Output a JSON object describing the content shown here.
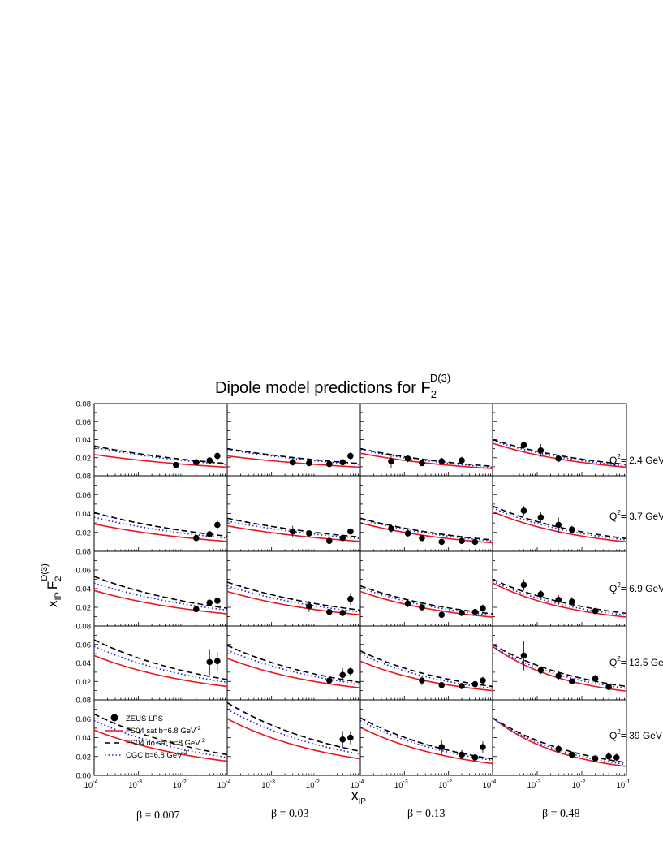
{
  "title": {
    "main": "Dipole model predictions for F",
    "sub": "2",
    "sup": "D(3)"
  },
  "ylabel": {
    "x": "x",
    "sub1": "IP",
    "F": "F",
    "sub2": "2",
    "sup": "D(3)"
  },
  "xlabel": {
    "x": "x",
    "sub": "IP"
  },
  "ytick_labels": [
    "0.00",
    "0.02",
    "0.04",
    "0.06",
    "0.08"
  ],
  "xtick_labels": [
    {
      "base": "10",
      "exp": "-4"
    },
    {
      "base": "10",
      "exp": "-3"
    },
    {
      "base": "10",
      "exp": "-2"
    },
    {
      "base": "10",
      "exp": "-1"
    }
  ],
  "beta_labels": [
    "β = 0.007",
    "β = 0.03",
    "β = 0.13",
    "β = 0.48"
  ],
  "q2_labels": [
    {
      "pre": "Q",
      "sup": "2",
      "post": "= 2.4 GeV"
    },
    {
      "pre": "Q",
      "sup": "2",
      "post": "= 3.7 GeV"
    },
    {
      "pre": "Q",
      "sup": "2",
      "post": "= 6.9 GeV"
    },
    {
      "pre": "Q",
      "sup": "2",
      "post": "= 13.5 Ge"
    },
    {
      "pre": "Q",
      "sup": "2",
      "post": "= 39 GeV"
    }
  ],
  "legend": [
    {
      "label": "ZEUS LPS",
      "sup": "",
      "style": "points"
    },
    {
      "label": "FS04 sat b=6.8 GeV",
      "sup": "-2",
      "style": "solid"
    },
    {
      "label": "FS04 no sat b=8 GeV",
      "sup": "-2",
      "style": "dash"
    },
    {
      "label": "CGC b=6.8 GeV",
      "sup": "-2",
      "style": "dot"
    }
  ],
  "colors": {
    "fs04_sat": "#e8171f",
    "fs04_nosat": "#000000",
    "cgc": "#1f1fcc",
    "data": "#000000"
  },
  "chart_data": {
    "type": "scatter",
    "layout": "5 rows (Q2) x 4 columns (beta) grid of panels",
    "xscale": "log",
    "xlim": [
      0.0001,
      0.1
    ],
    "ylim": [
      0,
      0.08
    ],
    "betas": [
      0.007,
      0.03,
      0.13,
      0.48
    ],
    "q2": [
      2.4,
      3.7,
      6.9,
      13.5,
      39
    ],
    "series_names": [
      "ZEUS LPS",
      "FS04 sat b=6.8 GeV-2",
      "FS04 no sat b=8 GeV-2",
      "CGC b=6.8 GeV-2"
    ],
    "panels": [
      [
        {
          "curves": {
            "sat": [
              0.0235,
              0.0095
            ],
            "nosat": [
              0.033,
              0.0135
            ],
            "cgc": [
              0.0315,
              0.0125
            ]
          },
          "points": [
            [
              0.007,
              0.012,
              0.003
            ],
            [
              0.02,
              0.015,
              0.002
            ],
            [
              0.04,
              0.017,
              0.003
            ],
            [
              0.06,
              0.022,
              0.004
            ]
          ]
        },
        {
          "curves": {
            "sat": [
              0.022,
              0.0095
            ],
            "nosat": [
              0.03,
              0.0135
            ],
            "cgc": [
              0.029,
              0.0125
            ]
          },
          "points": [
            [
              0.003,
              0.015,
              0.004
            ],
            [
              0.007,
              0.014,
              0.003
            ],
            [
              0.02,
              0.013,
              0.002
            ],
            [
              0.04,
              0.015,
              0.003
            ],
            [
              0.06,
              0.022,
              0.004
            ]
          ]
        },
        {
          "curves": {
            "sat": [
              0.025,
              0.008
            ],
            "nosat": [
              0.03,
              0.0105
            ],
            "cgc": [
              0.029,
              0.0095
            ]
          },
          "points": [
            [
              0.0005,
              0.016,
              0.008
            ],
            [
              0.0012,
              0.019,
              0.004
            ],
            [
              0.0025,
              0.014,
              0.003
            ],
            [
              0.007,
              0.016,
              0.004
            ],
            [
              0.02,
              0.017,
              0.004
            ]
          ]
        },
        {
          "curves": {
            "sat": [
              0.036,
              0.0095
            ],
            "nosat": [
              0.04,
              0.0125
            ],
            "cgc": [
              0.039,
              0.011
            ]
          },
          "points": [
            [
              0.0005,
              0.034,
              0.004
            ],
            [
              0.0012,
              0.028,
              0.007
            ],
            [
              0.003,
              0.019,
              0.004
            ]
          ]
        }
      ],
      [
        {
          "curves": {
            "sat": [
              0.029,
              0.0105
            ],
            "nosat": [
              0.041,
              0.016
            ],
            "cgc": [
              0.036,
              0.014
            ]
          },
          "points": [
            [
              0.02,
              0.014,
              0.002
            ],
            [
              0.04,
              0.018,
              0.003
            ],
            [
              0.06,
              0.028,
              0.005
            ]
          ]
        },
        {
          "curves": {
            "sat": [
              0.027,
              0.0105
            ],
            "nosat": [
              0.035,
              0.015
            ],
            "cgc": [
              0.032,
              0.0135
            ]
          },
          "points": [
            [
              0.003,
              0.021,
              0.006
            ],
            [
              0.007,
              0.019,
              0.003
            ],
            [
              0.02,
              0.011,
              0.002
            ],
            [
              0.04,
              0.014,
              0.002
            ],
            [
              0.06,
              0.021,
              0.003
            ]
          ]
        },
        {
          "curves": {
            "sat": [
              0.03,
              0.009
            ],
            "nosat": [
              0.035,
              0.012
            ],
            "cgc": [
              0.034,
              0.011
            ]
          },
          "points": [
            [
              0.0005,
              0.024,
              0.005
            ],
            [
              0.0012,
              0.019,
              0.004
            ],
            [
              0.0025,
              0.014,
              0.003
            ],
            [
              0.007,
              0.01,
              0.002
            ],
            [
              0.02,
              0.011,
              0.002
            ],
            [
              0.04,
              0.01,
              0.002
            ]
          ]
        },
        {
          "curves": {
            "sat": [
              0.042,
              0.01
            ],
            "nosat": [
              0.048,
              0.0135
            ],
            "cgc": [
              0.046,
              0.012
            ]
          },
          "points": [
            [
              0.0005,
              0.043,
              0.005
            ],
            [
              0.0012,
              0.036,
              0.006
            ],
            [
              0.003,
              0.028,
              0.008
            ],
            [
              0.006,
              0.023,
              0.004
            ]
          ]
        }
      ],
      [
        {
          "curves": {
            "sat": [
              0.038,
              0.013
            ],
            "nosat": [
              0.053,
              0.019
            ],
            "cgc": [
              0.046,
              0.017
            ]
          },
          "points": [
            [
              0.02,
              0.018,
              0.002
            ],
            [
              0.04,
              0.025,
              0.003
            ],
            [
              0.06,
              0.027,
              0.004
            ]
          ]
        },
        {
          "curves": {
            "sat": [
              0.037,
              0.012
            ],
            "nosat": [
              0.047,
              0.017
            ],
            "cgc": [
              0.043,
              0.015
            ]
          },
          "points": [
            [
              0.007,
              0.021,
              0.006
            ],
            [
              0.02,
              0.015,
              0.002
            ],
            [
              0.04,
              0.014,
              0.003
            ],
            [
              0.06,
              0.029,
              0.006
            ]
          ]
        },
        {
          "curves": {
            "sat": [
              0.037,
              0.0095
            ],
            "nosat": [
              0.043,
              0.013
            ],
            "cgc": [
              0.041,
              0.0115
            ]
          },
          "points": [
            [
              0.0012,
              0.024,
              0.004
            ],
            [
              0.0025,
              0.02,
              0.004
            ],
            [
              0.007,
              0.012,
              0.002
            ],
            [
              0.02,
              0.014,
              0.002
            ],
            [
              0.04,
              0.015,
              0.002
            ],
            [
              0.06,
              0.019,
              0.004
            ]
          ]
        },
        {
          "curves": {
            "sat": [
              0.046,
              0.0095
            ],
            "nosat": [
              0.05,
              0.0135
            ],
            "cgc": [
              0.048,
              0.0115
            ]
          },
          "points": [
            [
              0.0005,
              0.044,
              0.006
            ],
            [
              0.0012,
              0.034,
              0.004
            ],
            [
              0.003,
              0.028,
              0.005
            ],
            [
              0.006,
              0.026,
              0.005
            ],
            [
              0.02,
              0.016,
              0.002
            ]
          ]
        }
      ],
      [
        {
          "curves": {
            "sat": [
              0.048,
              0.0145
            ],
            "nosat": [
              0.065,
              0.022
            ],
            "cgc": [
              0.058,
              0.019
            ]
          },
          "points": [
            [
              0.04,
              0.041,
              0.014
            ],
            [
              0.06,
              0.042,
              0.01
            ]
          ]
        },
        {
          "curves": {
            "sat": [
              0.045,
              0.013
            ],
            "nosat": [
              0.059,
              0.019
            ],
            "cgc": [
              0.054,
              0.017
            ]
          },
          "points": [
            [
              0.02,
              0.021,
              0.002
            ],
            [
              0.04,
              0.027,
              0.007
            ],
            [
              0.06,
              0.031,
              0.005
            ]
          ]
        },
        {
          "curves": {
            "sat": [
              0.042,
              0.01
            ],
            "nosat": [
              0.053,
              0.0145
            ],
            "cgc": [
              0.05,
              0.0125
            ]
          },
          "points": [
            [
              0.0025,
              0.021,
              0.005
            ],
            [
              0.007,
              0.016,
              0.003
            ],
            [
              0.02,
              0.015,
              0.002
            ],
            [
              0.04,
              0.017,
              0.003
            ],
            [
              0.06,
              0.021,
              0.004
            ]
          ]
        },
        {
          "curves": {
            "sat": [
              0.058,
              0.0095
            ],
            "nosat": [
              0.06,
              0.0145
            ],
            "cgc": [
              0.058,
              0.0125
            ]
          },
          "points": [
            [
              0.0005,
              0.048,
              0.016
            ],
            [
              0.0012,
              0.032,
              0.004
            ],
            [
              0.003,
              0.026,
              0.005
            ],
            [
              0.006,
              0.02,
              0.003
            ],
            [
              0.02,
              0.023,
              0.004
            ],
            [
              0.04,
              0.014,
              0.003
            ]
          ]
        }
      ],
      [
        {
          "curves": {
            "sat": [
              0.048,
              0.015
            ],
            "nosat": [
              0.065,
              0.022
            ],
            "cgc": [
              0.058,
              0.019
            ]
          },
          "points": []
        },
        {
          "curves": {
            "sat": [
              0.06,
              0.0175
            ],
            "nosat": [
              0.077,
              0.0255
            ],
            "cgc": [
              0.07,
              0.0225
            ]
          },
          "points": [
            [
              0.04,
              0.038,
              0.009
            ],
            [
              0.06,
              0.04,
              0.007
            ]
          ]
        },
        {
          "curves": {
            "sat": [
              0.051,
              0.0125
            ],
            "nosat": [
              0.061,
              0.0175
            ],
            "cgc": [
              0.058,
              0.016
            ]
          },
          "points": [
            [
              0.007,
              0.03,
              0.008
            ],
            [
              0.02,
              0.022,
              0.005
            ],
            [
              0.04,
              0.019,
              0.003
            ],
            [
              0.06,
              0.03,
              0.006
            ]
          ]
        },
        {
          "curves": {
            "sat": [
              0.061,
              0.0095
            ],
            "nosat": [
              0.061,
              0.0135
            ],
            "cgc": [
              0.061,
              0.0115
            ]
          },
          "points": [
            [
              0.003,
              0.028,
              0.004
            ],
            [
              0.006,
              0.022,
              0.003
            ],
            [
              0.02,
              0.018,
              0.003
            ],
            [
              0.04,
              0.02,
              0.005
            ],
            [
              0.06,
              0.019,
              0.004
            ]
          ]
        }
      ]
    ]
  }
}
